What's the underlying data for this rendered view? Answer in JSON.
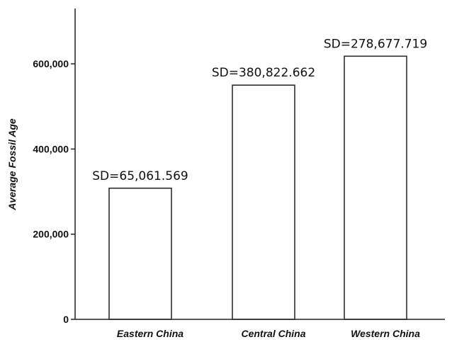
{
  "chart_data": {
    "type": "bar",
    "categories": [
      "Eastern China",
      "Central China",
      "Western China"
    ],
    "values": [
      308000,
      550000,
      618000
    ],
    "annotations": [
      "SD=65,061.569",
      "SD=380,822.662",
      "SD=278,677.719"
    ],
    "ylabel": "Average Fossil Age",
    "xlabel": "",
    "ylim": [
      0,
      730000
    ],
    "yticks": [
      0,
      200000,
      400000,
      600000
    ],
    "ytick_labels": [
      "0",
      "200,000",
      "400,000",
      "600,000"
    ],
    "grid": false,
    "colors": {
      "bar_fill": "#ffffff",
      "bar_stroke": "#222222",
      "axis": "#222222"
    }
  }
}
